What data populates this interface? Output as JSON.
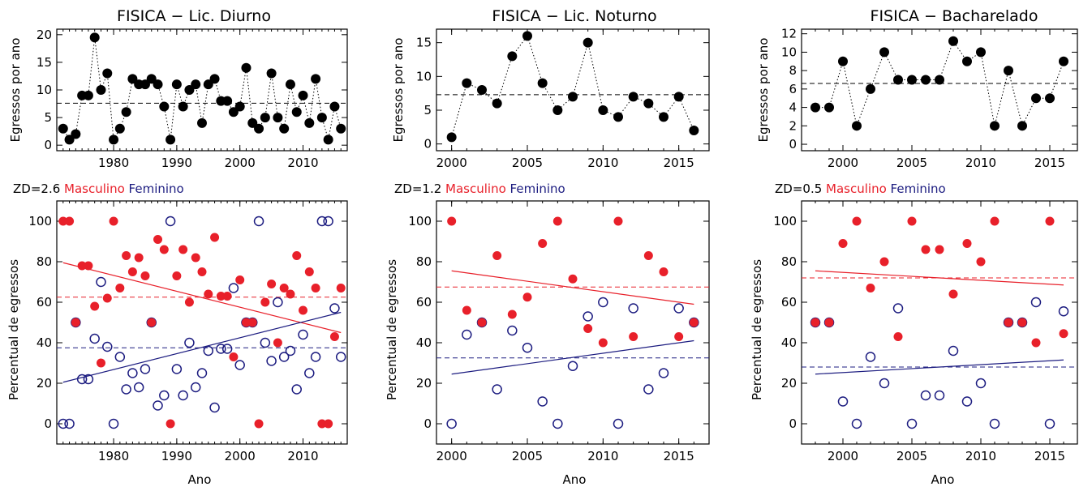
{
  "colors": {
    "masculino": "#e8202a",
    "feminino": "#1c1c80",
    "black": "#000000"
  },
  "top": [
    {
      "title": "FISICA − Lic. Diurno",
      "ylabel": "Egressos por ano",
      "xlim": [
        1971,
        2017
      ],
      "ylim": [
        -1,
        21
      ],
      "xticks": [
        "1980",
        "1990",
        "2000",
        "2010"
      ],
      "xtick_values": [
        1980,
        1990,
        2000,
        2010
      ],
      "yticks": [
        "0",
        "5",
        "10",
        "15",
        "20"
      ],
      "ytick_values": [
        0,
        5,
        10,
        15,
        20
      ],
      "mean": 7.6,
      "x": [
        1972,
        1973,
        1974,
        1975,
        1976,
        1977,
        1978,
        1979,
        1980,
        1981,
        1982,
        1983,
        1984,
        1985,
        1986,
        1987,
        1988,
        1989,
        1990,
        1991,
        1992,
        1993,
        1994,
        1995,
        1996,
        1997,
        1998,
        1999,
        2000,
        2001,
        2002,
        2003,
        2004,
        2005,
        2006,
        2007,
        2008,
        2009,
        2010,
        2011,
        2012,
        2013,
        2014,
        2015,
        2016
      ],
      "y": [
        3,
        1,
        2,
        9,
        9,
        19.5,
        10,
        13,
        1,
        3,
        6,
        12,
        11,
        11,
        12,
        11,
        7,
        1,
        11,
        7,
        10,
        11,
        4,
        11,
        12,
        8,
        8,
        6,
        7,
        14,
        4,
        3,
        5,
        13,
        5,
        3,
        11,
        6,
        9,
        4,
        12,
        5,
        1,
        7,
        3
      ]
    },
    {
      "title": "FISICA − Lic. Noturno",
      "ylabel": "Egressos por ano",
      "xlim": [
        1999,
        2017
      ],
      "ylim": [
        -1,
        17
      ],
      "xticks": [
        "2000",
        "2005",
        "2010",
        "2015"
      ],
      "xtick_values": [
        2000,
        2005,
        2010,
        2015
      ],
      "yticks": [
        "0",
        "5",
        "10",
        "15"
      ],
      "ytick_values": [
        0,
        5,
        10,
        15
      ],
      "mean": 7.3,
      "x": [
        2000,
        2001,
        2002,
        2003,
        2004,
        2005,
        2006,
        2007,
        2008,
        2009,
        2010,
        2011,
        2012,
        2013,
        2014,
        2015,
        2016
      ],
      "y": [
        1,
        9,
        8,
        6,
        13,
        16,
        9,
        5,
        7,
        15,
        5,
        4,
        7,
        6,
        4,
        7,
        2
      ]
    },
    {
      "title": "FISICA − Bacharelado",
      "ylabel": "Egressos por ano",
      "xlim": [
        1997,
        2017
      ],
      "ylim": [
        -0.7,
        12.5
      ],
      "xticks": [
        "2000",
        "2005",
        "2010",
        "2015"
      ],
      "xtick_values": [
        2000,
        2005,
        2010,
        2015
      ],
      "yticks": [
        "0",
        "2",
        "4",
        "6",
        "8",
        "10",
        "12"
      ],
      "ytick_values": [
        0,
        2,
        4,
        6,
        8,
        10,
        12
      ],
      "mean": 6.6,
      "x": [
        1998,
        1999,
        2000,
        2001,
        2002,
        2003,
        2004,
        2005,
        2006,
        2007,
        2008,
        2009,
        2010,
        2011,
        2012,
        2013,
        2014,
        2015,
        2016
      ],
      "y": [
        4,
        4,
        9,
        2,
        6,
        10,
        7,
        7,
        7,
        7,
        11.2,
        9,
        10,
        2,
        8,
        2,
        5,
        5,
        9
      ]
    }
  ],
  "bottom": [
    {
      "zd": "ZD=2.6",
      "masculino_label": "Masculino",
      "feminino_label": "Feminino",
      "ylabel": "Percentual de egressos",
      "xlabel": "Ano",
      "xlim": [
        1971,
        2017
      ],
      "ylim": [
        -10,
        110
      ],
      "xticks": [
        "1980",
        "1990",
        "2000",
        "2010"
      ],
      "xtick_values": [
        1980,
        1990,
        2000,
        2010
      ],
      "yticks": [
        "0",
        "20",
        "40",
        "60",
        "80",
        "100"
      ],
      "ytick_values": [
        0,
        20,
        40,
        60,
        80,
        100
      ],
      "masc_mean": 62.5,
      "fem_mean": 37.5,
      "masc_trend": [
        [
          1972,
          79.5
        ],
        [
          2016,
          45
        ]
      ],
      "fem_trend": [
        [
          1972,
          20.5
        ],
        [
          2016,
          55
        ]
      ],
      "masc_x": [
        1972,
        1973,
        1974,
        1975,
        1976,
        1977,
        1978,
        1979,
        1980,
        1981,
        1982,
        1983,
        1984,
        1985,
        1986,
        1987,
        1988,
        1989,
        1990,
        1991,
        1992,
        1993,
        1994,
        1995,
        1996,
        1997,
        1998,
        1999,
        2000,
        2001,
        2002,
        2003,
        2004,
        2005,
        2006,
        2007,
        2008,
        2009,
        2010,
        2011,
        2012,
        2013,
        2014,
        2015,
        2016
      ],
      "masc_y": [
        100,
        100,
        50,
        78,
        78,
        58,
        30,
        62,
        100,
        67,
        83,
        75,
        82,
        73,
        50,
        91,
        86,
        0,
        73,
        86,
        60,
        82,
        75,
        64,
        92,
        63,
        63,
        33,
        71,
        50,
        50,
        0,
        60,
        69,
        40,
        67,
        64,
        83,
        56,
        75,
        67,
        0,
        0,
        43,
        67
      ],
      "fem_x": [
        1972,
        1973,
        1974,
        1975,
        1976,
        1977,
        1978,
        1979,
        1980,
        1981,
        1982,
        1983,
        1984,
        1985,
        1986,
        1987,
        1988,
        1989,
        1990,
        1991,
        1992,
        1993,
        1994,
        1995,
        1996,
        1997,
        1998,
        1999,
        2000,
        2001,
        2002,
        2003,
        2004,
        2005,
        2006,
        2007,
        2008,
        2009,
        2010,
        2011,
        2012,
        2013,
        2014,
        2015,
        2016
      ],
      "fem_y": [
        0,
        0,
        50,
        22,
        22,
        42,
        70,
        38,
        0,
        33,
        17,
        25,
        18,
        27,
        50,
        9,
        14,
        100,
        27,
        14,
        40,
        18,
        25,
        36,
        8,
        37,
        37,
        67,
        29,
        50,
        50,
        100,
        40,
        31,
        60,
        33,
        36,
        17,
        44,
        25,
        33,
        100,
        100,
        57,
        33
      ]
    },
    {
      "zd": "ZD=1.2",
      "masculino_label": "Masculino",
      "feminino_label": "Feminino",
      "ylabel": "Percentual de egressos",
      "xlabel": "Ano",
      "xlim": [
        1999,
        2017
      ],
      "ylim": [
        -10,
        110
      ],
      "xticks": [
        "2000",
        "2005",
        "2010",
        "2015"
      ],
      "xtick_values": [
        2000,
        2005,
        2010,
        2015
      ],
      "yticks": [
        "0",
        "20",
        "40",
        "60",
        "80",
        "100"
      ],
      "ytick_values": [
        0,
        20,
        40,
        60,
        80,
        100
      ],
      "masc_mean": 67.5,
      "fem_mean": 32.5,
      "masc_trend": [
        [
          2000,
          75.5
        ],
        [
          2016,
          59
        ]
      ],
      "fem_trend": [
        [
          2000,
          24.5
        ],
        [
          2016,
          41
        ]
      ],
      "masc_x": [
        2000,
        2001,
        2002,
        2003,
        2004,
        2005,
        2006,
        2007,
        2008,
        2009,
        2010,
        2011,
        2012,
        2013,
        2014,
        2015,
        2016
      ],
      "masc_y": [
        100,
        56,
        50,
        83,
        54,
        62.5,
        89,
        100,
        71.5,
        47,
        40,
        100,
        43,
        83,
        75,
        43,
        50
      ],
      "fem_x": [
        2000,
        2001,
        2002,
        2003,
        2004,
        2005,
        2006,
        2007,
        2008,
        2009,
        2010,
        2011,
        2012,
        2013,
        2014,
        2015,
        2016
      ],
      "fem_y": [
        0,
        44,
        50,
        17,
        46,
        37.5,
        11,
        0,
        28.5,
        53,
        60,
        0,
        57,
        17,
        25,
        57,
        50
      ]
    },
    {
      "zd": "ZD=0.5",
      "masculino_label": "Masculino",
      "feminino_label": "Feminino",
      "ylabel": "Percentual de egressos",
      "xlabel": "Ano",
      "xlim": [
        1997,
        2017
      ],
      "ylim": [
        -10,
        110
      ],
      "xticks": [
        "2000",
        "2005",
        "2010",
        "2015"
      ],
      "xtick_values": [
        2000,
        2005,
        2010,
        2015
      ],
      "yticks": [
        "0",
        "20",
        "40",
        "60",
        "80",
        "100"
      ],
      "ytick_values": [
        0,
        20,
        40,
        60,
        80,
        100
      ],
      "masc_mean": 72,
      "fem_mean": 28,
      "masc_trend": [
        [
          1998,
          75.5
        ],
        [
          2016,
          68.5
        ]
      ],
      "fem_trend": [
        [
          1998,
          24.5
        ],
        [
          2016,
          31.5
        ]
      ],
      "masc_x": [
        1998,
        1999,
        2000,
        2001,
        2002,
        2003,
        2004,
        2005,
        2006,
        2007,
        2008,
        2009,
        2010,
        2011,
        2012,
        2013,
        2014,
        2015,
        2016
      ],
      "masc_y": [
        50,
        50,
        89,
        100,
        67,
        80,
        43,
        100,
        86,
        86,
        64,
        89,
        80,
        100,
        50,
        50,
        40,
        100,
        44.5
      ],
      "fem_x": [
        1998,
        1999,
        2000,
        2001,
        2002,
        2003,
        2004,
        2005,
        2006,
        2007,
        2008,
        2009,
        2010,
        2011,
        2012,
        2013,
        2014,
        2015,
        2016
      ],
      "fem_y": [
        50,
        50,
        11,
        0,
        33,
        20,
        57,
        0,
        14,
        14,
        36,
        11,
        20,
        0,
        50,
        50,
        60,
        0,
        55.5
      ]
    }
  ]
}
